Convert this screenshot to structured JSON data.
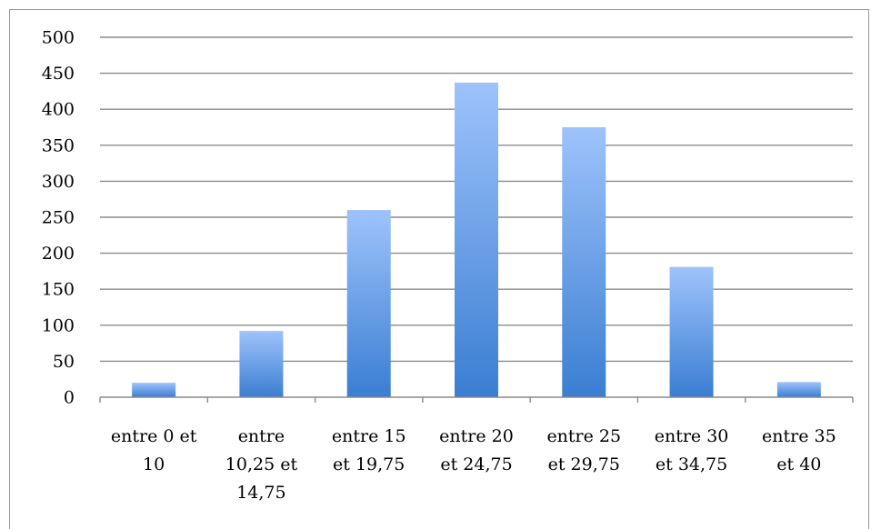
{
  "chart_data": {
    "type": "bar",
    "categories": [
      [
        "entre 0 et",
        "10"
      ],
      [
        "entre",
        "10,25 et",
        "14,75"
      ],
      [
        "entre 15",
        "et 19,75"
      ],
      [
        "entre 20",
        "et 24,75"
      ],
      [
        "entre 25",
        "et 29,75"
      ],
      [
        "entre 30",
        "et 34,75"
      ],
      [
        "entre 35",
        "et 40"
      ]
    ],
    "values": [
      20,
      92,
      260,
      437,
      375,
      181,
      21
    ],
    "title": "",
    "xlabel": "",
    "ylabel": "",
    "ylim": [
      0,
      500
    ],
    "yticks": [
      0,
      50,
      100,
      150,
      200,
      250,
      300,
      350,
      400,
      450,
      500
    ],
    "grid": true,
    "legend": "none",
    "colors": {
      "bar_top": "#9ec3fb",
      "bar_bottom": "#3a7ed2",
      "grid": "#8c8c8c",
      "axis": "#8c8c8c"
    }
  }
}
